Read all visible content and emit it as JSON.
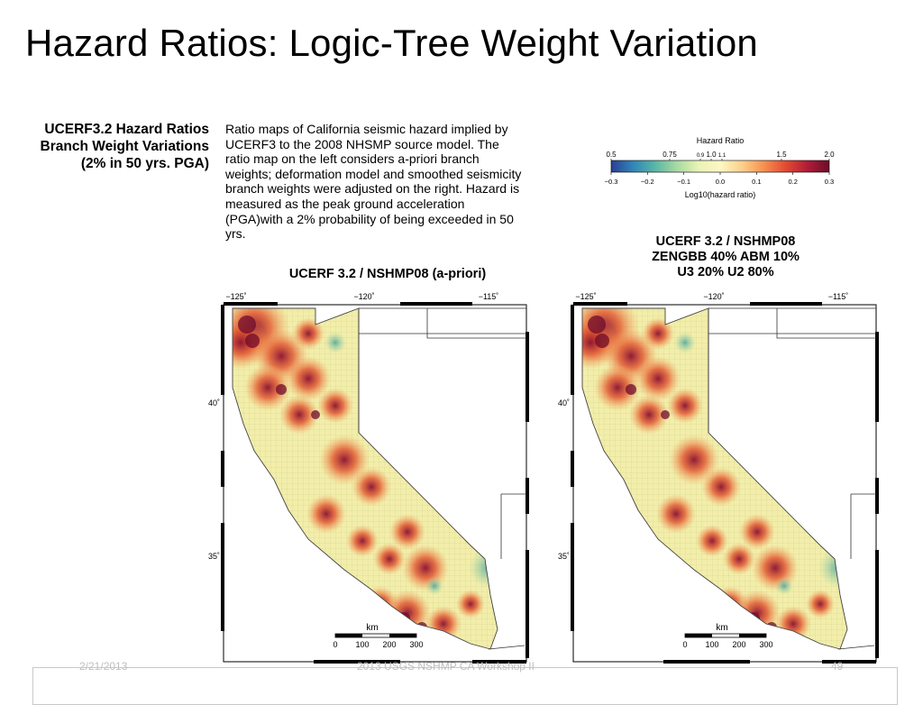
{
  "slide": {
    "title": "Hazard Ratios: Logic-Tree Weight Variation",
    "left_caption": [
      "UCERF3.2 Hazard Ratios",
      "Branch Weight Variations",
      "(2% in 50 yrs. PGA)"
    ],
    "description": "Ratio maps of California seismic hazard implied by UCERF3 to the 2008 NHSMP source model. The ratio map on the left considers a-priori branch weights; deformation model and smoothed seismicity branch weights were adjusted on the right. Hazard is measured as the peak ground acceleration (PGA)with a 2% probability of being exceeded in 50 yrs.",
    "footer": {
      "date": "2/21/2013",
      "event": "2013 USGS NSHMP CA Workshop II",
      "page": "49"
    }
  },
  "colorbar": {
    "title": "Hazard Ratio",
    "top_ticks": [
      "0.5",
      "0.75",
      "0.9",
      "1.0",
      "1.1",
      "1.5",
      "2.0"
    ],
    "bottom_ticks": [
      "−0.3",
      "−0.2",
      "−0.1",
      "0.0",
      "0.1",
      "0.2",
      "0.3"
    ],
    "label": "Log10(hazard ratio)",
    "colors": [
      "#2b3f93",
      "#2f86b8",
      "#59b6a6",
      "#a6d9a2",
      "#e9f3b4",
      "#fdf7c4",
      "#fcd08a",
      "#f7914f",
      "#e34a33",
      "#b01c36",
      "#6e0b2b"
    ]
  },
  "maps": [
    {
      "title_lines": [
        "UCERF 3.2 / NSHMP08 (a-priori)"
      ],
      "lon_labels": [
        "−125˚",
        "−120˚",
        "−115˚"
      ],
      "lat_labels": [
        "40˚",
        "35˚"
      ],
      "scale": {
        "unit": "km",
        "ticks": [
          "0",
          "100",
          "200",
          "300"
        ]
      }
    },
    {
      "title_lines": [
        "UCERF 3.2 / NSHMP08",
        "ZENGBB 40%  ABM 10%",
        "U3 20% U2 80%"
      ],
      "lon_labels": [
        "−125˚",
        "−120˚",
        "−115˚"
      ],
      "lat_labels": [
        "40˚",
        "35˚"
      ],
      "scale": {
        "unit": "km",
        "ticks": [
          "0",
          "100",
          "200",
          "300"
        ]
      }
    }
  ]
}
